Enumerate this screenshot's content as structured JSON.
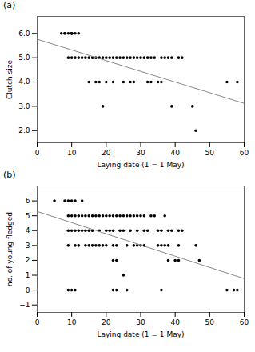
{
  "chart_data": [
    {
      "type": "scatter",
      "title": "(a)",
      "x_label": "Laying date (1 = 1 May)",
      "y_label": "Clutch size",
      "xlim": [
        0,
        60
      ],
      "ylim": [
        1.5,
        6.7
      ],
      "xticks": [
        0,
        10,
        20,
        30,
        40,
        50,
        60
      ],
      "yticks": [
        2,
        3,
        4,
        5,
        6
      ],
      "series": [
        {
          "type": "scatter",
          "color": "#000000",
          "x": [
            7,
            8,
            8,
            9,
            10,
            10,
            10,
            10,
            10,
            11,
            12,
            9,
            10,
            11,
            12,
            13,
            14,
            15,
            16,
            17,
            18,
            19,
            20,
            21,
            22,
            23,
            24,
            25,
            26,
            27,
            28,
            29,
            30,
            31,
            32,
            33,
            34,
            36,
            37,
            38,
            39,
            41,
            42,
            15,
            17,
            18,
            20,
            22,
            25,
            27,
            28,
            32,
            33,
            35,
            36,
            55,
            58,
            19,
            39,
            45,
            46
          ],
          "values": [
            6,
            6,
            6,
            6,
            6,
            6,
            6,
            6,
            6,
            6,
            6,
            5,
            5,
            5,
            5,
            5,
            5,
            5,
            5,
            5,
            5,
            5,
            5,
            5,
            5,
            5,
            5,
            5,
            5,
            5,
            5,
            5,
            5,
            5,
            5,
            5,
            5,
            5,
            5,
            5,
            5,
            5,
            5,
            4,
            4,
            4,
            4,
            4,
            4,
            4,
            4,
            4,
            4,
            4,
            4,
            4,
            4,
            3,
            3,
            3,
            2
          ]
        },
        {
          "type": "line",
          "color": "#888888",
          "x": [
            0,
            60
          ],
          "values": [
            5.76,
            3.12
          ]
        }
      ]
    },
    {
      "type": "scatter",
      "title": "(b)",
      "x_label": "Laying date (1 = 1 May)",
      "y_label": "no. of young fledged",
      "xlim": [
        0,
        60
      ],
      "ylim": [
        -1.5,
        7
      ],
      "xticks": [
        0,
        10,
        20,
        30,
        40,
        50,
        60
      ],
      "yticks": [
        -1,
        0,
        1,
        2,
        3,
        4,
        5,
        6
      ],
      "series": [
        {
          "type": "scatter",
          "color": "#000000",
          "x": [
            5,
            8,
            9,
            10,
            11,
            13,
            9,
            10,
            11,
            12,
            13,
            14,
            15,
            16,
            17,
            18,
            19,
            20,
            21,
            22,
            23,
            24,
            25,
            26,
            27,
            28,
            29,
            31,
            33,
            34,
            30,
            37,
            9,
            10,
            11,
            12,
            13,
            14,
            15,
            16,
            18,
            20,
            21,
            22,
            24,
            25,
            27,
            29,
            31,
            32,
            35,
            36,
            38,
            39,
            41,
            42,
            9,
            11,
            12,
            14,
            15,
            16,
            17,
            18,
            19,
            20,
            22,
            23,
            26,
            28,
            29,
            30,
            31,
            35,
            36,
            37,
            38,
            41,
            46,
            22,
            23,
            38,
            40,
            41,
            47,
            25,
            9,
            10,
            11,
            22,
            23,
            26,
            36,
            55,
            57,
            58
          ],
          "values": [
            6,
            6,
            6,
            6,
            6,
            6,
            5,
            5,
            5,
            5,
            5,
            5,
            5,
            5,
            5,
            5,
            5,
            5,
            5,
            5,
            5,
            5,
            5,
            5,
            5,
            5,
            5,
            5,
            5,
            5,
            5,
            5,
            4,
            4,
            4,
            4,
            4,
            4,
            4,
            4,
            4,
            4,
            4,
            4,
            4,
            4,
            4,
            4,
            4,
            4,
            4,
            4,
            4,
            4,
            4,
            4,
            3,
            3,
            3,
            3,
            3,
            3,
            3,
            3,
            3,
            3,
            3,
            3,
            3,
            3,
            3,
            3,
            3,
            3,
            3,
            3,
            3,
            3,
            3,
            2,
            2,
            2,
            2,
            2,
            2,
            1,
            0,
            0,
            0,
            0,
            0,
            0,
            0,
            0,
            0,
            0
          ]
        },
        {
          "type": "line",
          "color": "#888888",
          "x": [
            0,
            60
          ],
          "values": [
            5.29,
            0.772
          ]
        }
      ]
    }
  ]
}
